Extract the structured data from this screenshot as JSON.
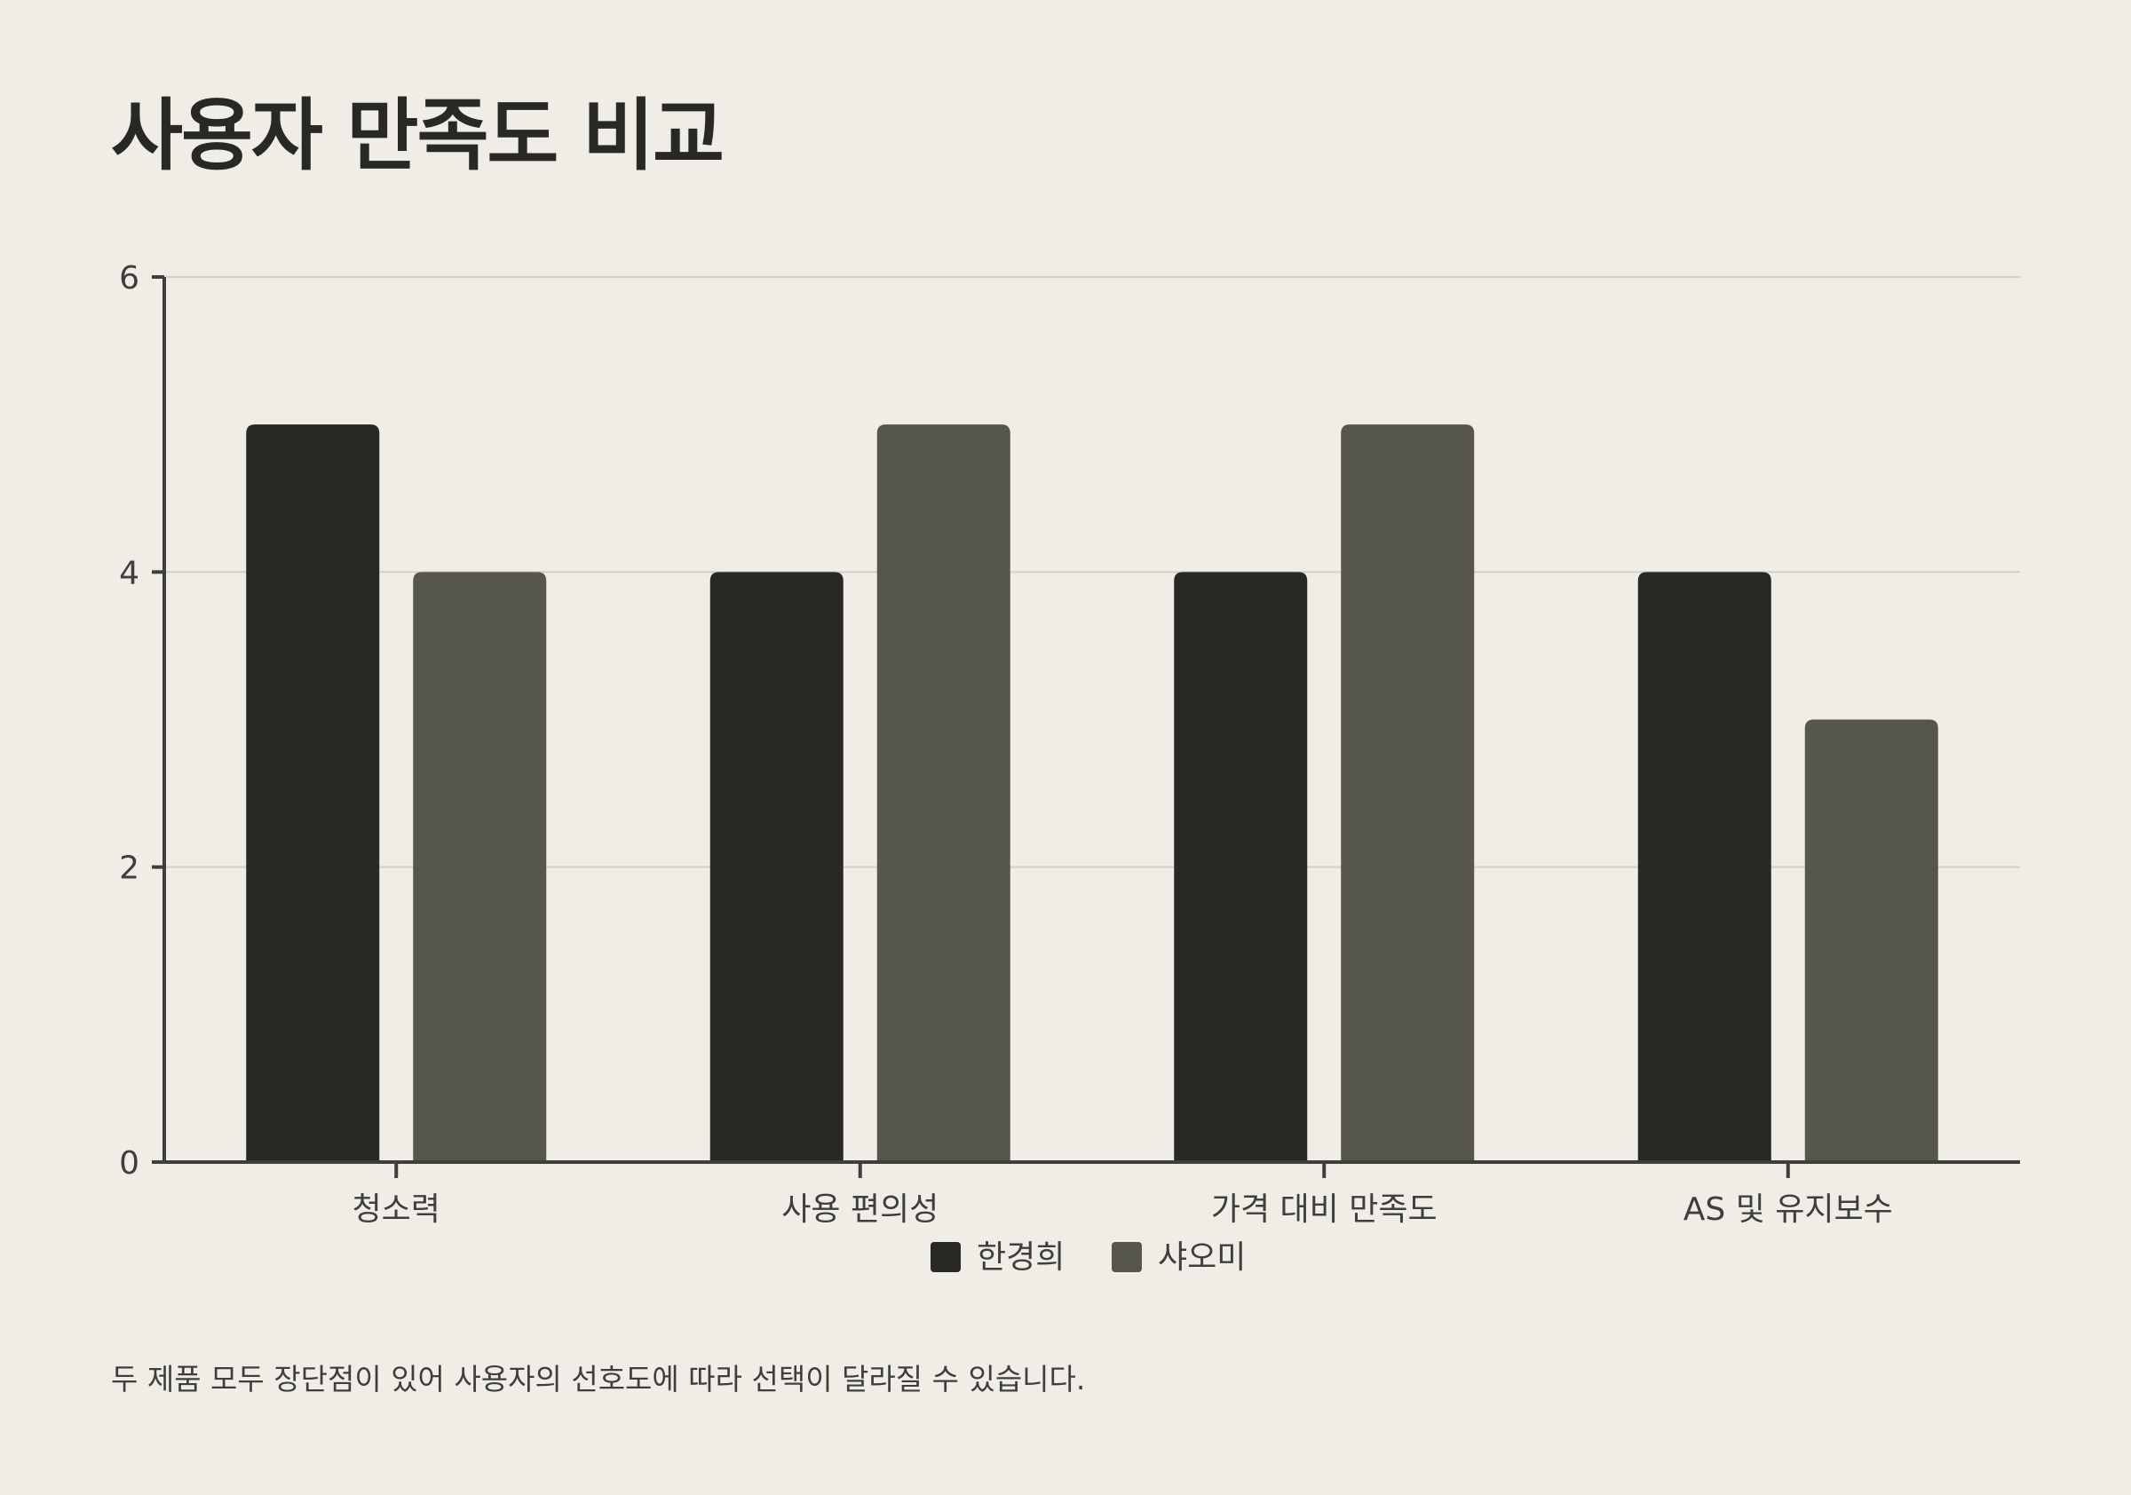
{
  "header": {
    "title": "사용자 만족도 비교"
  },
  "chart_data": {
    "type": "bar",
    "categories": [
      "청소력",
      "사용 편의성",
      "가격 대비 만족도",
      "AS 및 유지보수"
    ],
    "series": [
      {
        "name": "한경희",
        "values": [
          5,
          4,
          4,
          4
        ],
        "color": "#282925"
      },
      {
        "name": "샤오미",
        "values": [
          4,
          5,
          5,
          3
        ],
        "color": "#56564c"
      }
    ],
    "yticks": [
      0,
      2,
      4,
      6
    ],
    "ylim": [
      0,
      6
    ],
    "grid": true,
    "legend_position": "bottom-center",
    "colors": {
      "background": "#f0ede6",
      "axis": "#3e3f3a",
      "grid": "#d3d0c8"
    }
  },
  "footer": {
    "note": "두 제품 모두 장단점이 있어 사용자의 선호도에 따라 선택이 달라질 수 있습니다."
  }
}
